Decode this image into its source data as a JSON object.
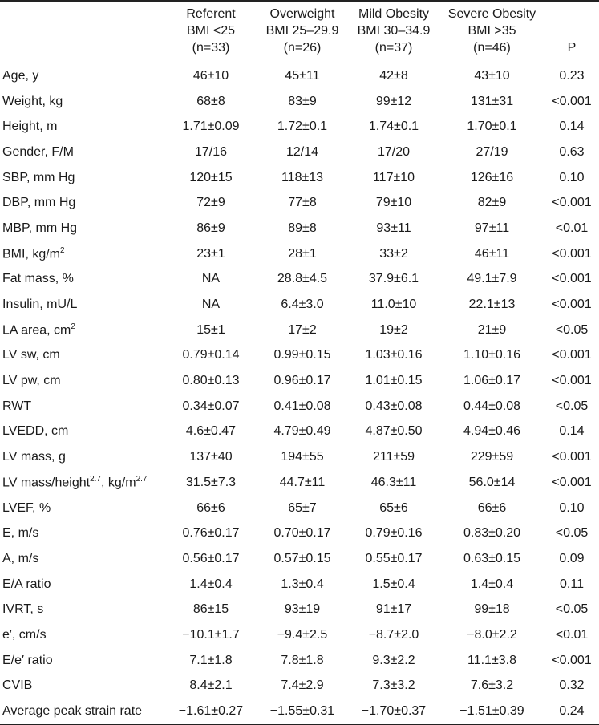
{
  "columns": [
    {
      "line1": "Referent",
      "line2": "BMI <25",
      "line3": "(n=33)"
    },
    {
      "line1": "Overweight",
      "line2": "BMI 25–29.9",
      "line3": "(n=26)"
    },
    {
      "line1": "Mild Obesity",
      "line2": "BMI 30–34.9",
      "line3": "(n=37)"
    },
    {
      "line1": "Severe Obesity",
      "line2": "BMI >35",
      "line3": "(n=46)"
    }
  ],
  "p_header": "P",
  "rows": [
    {
      "label": "Age, y",
      "values": [
        "46±10",
        "45±11",
        "42±8",
        "43±10",
        "0.23"
      ]
    },
    {
      "label": "Weight, kg",
      "values": [
        "68±8",
        "83±9",
        "99±12",
        "131±31",
        "<0.001"
      ]
    },
    {
      "label": "Height, m",
      "values": [
        "1.71±0.09",
        "1.72±0.1",
        "1.74±0.1",
        "1.70±0.1",
        "0.14"
      ]
    },
    {
      "label": "Gender, F/M",
      "values": [
        "17/16",
        "12/14",
        "17/20",
        "27/19",
        "0.63"
      ]
    },
    {
      "label": "SBP, mm Hg",
      "values": [
        "120±15",
        "118±13",
        "117±10",
        "126±16",
        "0.10"
      ]
    },
    {
      "label": "DBP, mm Hg",
      "values": [
        "72±9",
        "77±8",
        "79±10",
        "82±9",
        "<0.001"
      ]
    },
    {
      "label": "MBP, mm Hg",
      "values": [
        "86±9",
        "89±8",
        "93±11",
        "97±11",
        "<0.01"
      ]
    },
    {
      "label": "BMI, kg/m2",
      "values": [
        "23±1",
        "28±1",
        "33±2",
        "46±11",
        "<0.001"
      ]
    },
    {
      "label": "Fat mass, %",
      "values": [
        "NA",
        "28.8±4.5",
        "37.9±6.1",
        "49.1±7.9",
        "<0.001"
      ]
    },
    {
      "label": "Insulin, mU/L",
      "values": [
        "NA",
        "6.4±3.0",
        "11.0±10",
        "22.1±13",
        "<0.001"
      ]
    },
    {
      "label": "LA area, cm2",
      "values": [
        "15±1",
        "17±2",
        "19±2",
        "21±9",
        "<0.05"
      ]
    },
    {
      "label": "LV sw, cm",
      "values": [
        "0.79±0.14",
        "0.99±0.15",
        "1.03±0.16",
        "1.10±0.16",
        "<0.001"
      ]
    },
    {
      "label": "LV pw, cm",
      "values": [
        "0.80±0.13",
        "0.96±0.17",
        "1.01±0.15",
        "1.06±0.17",
        "<0.001"
      ]
    },
    {
      "label": "RWT",
      "values": [
        "0.34±0.07",
        "0.41±0.08",
        "0.43±0.08",
        "0.44±0.08",
        "<0.05"
      ]
    },
    {
      "label": "LVEDD, cm",
      "values": [
        "4.6±0.47",
        "4.79±0.49",
        "4.87±0.50",
        "4.94±0.46",
        "0.14"
      ]
    },
    {
      "label": "LV mass, g",
      "values": [
        "137±40",
        "194±55",
        "211±59",
        "229±59",
        "<0.001"
      ]
    },
    {
      "label": "LV mass/height2.7, kg/m2.7",
      "values": [
        "31.5±7.3",
        "44.7±11",
        "46.3±11",
        "56.0±14",
        "<0.001"
      ]
    },
    {
      "label": "LVEF, %",
      "values": [
        "66±6",
        "65±7",
        "65±6",
        "66±6",
        "0.10"
      ]
    },
    {
      "label": "E, m/s",
      "values": [
        "0.76±0.17",
        "0.70±0.17",
        "0.79±0.16",
        "0.83±0.20",
        "<0.05"
      ]
    },
    {
      "label": "A, m/s",
      "values": [
        "0.56±0.17",
        "0.57±0.15",
        "0.55±0.17",
        "0.63±0.15",
        "0.09"
      ]
    },
    {
      "label": "E/A ratio",
      "values": [
        "1.4±0.4",
        "1.3±0.4",
        "1.5±0.4",
        "1.4±0.4",
        "0.11"
      ]
    },
    {
      "label": "IVRT, s",
      "values": [
        "86±15",
        "93±19",
        "91±17",
        "99±18",
        "<0.05"
      ]
    },
    {
      "label": "e′, cm/s",
      "values": [
        "−10.1±1.7",
        "−9.4±2.5",
        "−8.7±2.0",
        "−8.0±2.2",
        "<0.01"
      ]
    },
    {
      "label": "E/e′ ratio",
      "values": [
        "7.1±1.8",
        "7.8±1.8",
        "9.3±2.2",
        "11.1±3.8",
        "<0.001"
      ]
    },
    {
      "label": "CVIB",
      "values": [
        "8.4±2.1",
        "7.4±2.9",
        "7.3±3.2",
        "7.6±3.2",
        "0.32"
      ]
    },
    {
      "label": "Average peak strain rate",
      "values": [
        "−1.61±0.27",
        "−1.55±0.31",
        "−1.70±0.37",
        "−1.51±0.39",
        "0.24"
      ]
    }
  ]
}
